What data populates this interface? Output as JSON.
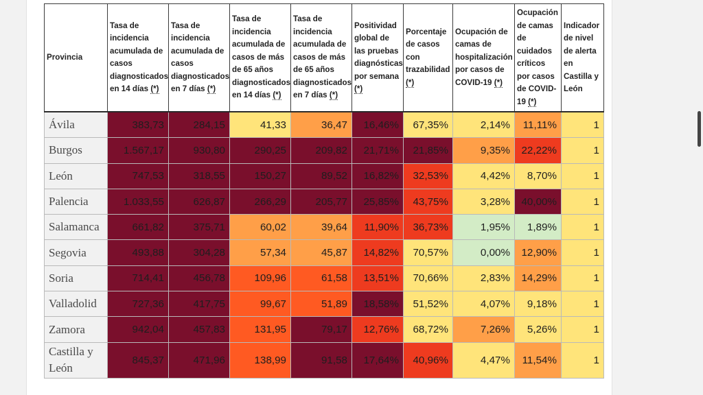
{
  "table": {
    "headers": [
      "Provincia",
      "Tasa de incidencia acumulada de casos diagnosticados en 14 días",
      "Tasa de incidencia acumulada de casos diagnosticados en 7 días",
      "Tasa de incidencia acumulada de casos de más de 65 años diagnosticados en 14 días",
      "Tasa de incidencia acumulada de casos de más de 65 años diagnosticados en 7 días",
      "Positividad global de las pruebas diagnósticas por semana",
      "Porcentaje de casos con trazabilidad",
      "Ocupación de camas de hospitalización por casos de COVID-19",
      "Ocupación de camas de cuidados críticos por casos de COVID-19",
      "Indicador de nivel de alerta en Castilla y León"
    ],
    "header_marker": "(*)",
    "rows": [
      {
        "provincia": "Ávila",
        "cells": [
          [
            "383,73",
            "dr"
          ],
          [
            "284,15",
            "dr"
          ],
          [
            "41,33",
            "yl"
          ],
          [
            "36,47",
            "or"
          ],
          [
            "16,46%",
            "dr"
          ],
          [
            "67,35%",
            "yl"
          ],
          [
            "2,14%",
            "yl"
          ],
          [
            "11,11%",
            "or"
          ],
          [
            "1",
            "yl"
          ]
        ]
      },
      {
        "provincia": "Burgos",
        "cells": [
          [
            "1.567,17",
            "dr"
          ],
          [
            "930,80",
            "dr"
          ],
          [
            "290,25",
            "dr"
          ],
          [
            "209,82",
            "dr"
          ],
          [
            "21,71%",
            "dr"
          ],
          [
            "21,85%",
            "dr"
          ],
          [
            "9,35%",
            "or"
          ],
          [
            "22,22%",
            "rd"
          ],
          [
            "1",
            "yl"
          ]
        ]
      },
      {
        "provincia": "León",
        "cells": [
          [
            "747,53",
            "dr"
          ],
          [
            "318,55",
            "dr"
          ],
          [
            "150,27",
            "dr"
          ],
          [
            "89,52",
            "dr"
          ],
          [
            "16,82%",
            "dr"
          ],
          [
            "32,53%",
            "rd"
          ],
          [
            "4,42%",
            "yl"
          ],
          [
            "8,70%",
            "yl"
          ],
          [
            "1",
            "yl"
          ]
        ]
      },
      {
        "provincia": "Palencia",
        "cells": [
          [
            "1.033,55",
            "dr"
          ],
          [
            "626,87",
            "dr"
          ],
          [
            "266,29",
            "dr"
          ],
          [
            "205,77",
            "dr"
          ],
          [
            "25,85%",
            "dr"
          ],
          [
            "43,75%",
            "rd"
          ],
          [
            "3,28%",
            "yl"
          ],
          [
            "40,00%",
            "dr"
          ],
          [
            "1",
            "yl"
          ]
        ]
      },
      {
        "provincia": "Salamanca",
        "cells": [
          [
            "661,82",
            "dr"
          ],
          [
            "375,71",
            "dr"
          ],
          [
            "60,02",
            "or"
          ],
          [
            "39,64",
            "or"
          ],
          [
            "11,90%",
            "rd"
          ],
          [
            "36,73%",
            "rd"
          ],
          [
            "1,95%",
            "lg"
          ],
          [
            "1,89%",
            "lg"
          ],
          [
            "1",
            "yl"
          ]
        ]
      },
      {
        "provincia": "Segovia",
        "cells": [
          [
            "493,88",
            "dr"
          ],
          [
            "304,28",
            "dr"
          ],
          [
            "57,34",
            "or"
          ],
          [
            "45,87",
            "or"
          ],
          [
            "14,82%",
            "rd"
          ],
          [
            "70,57%",
            "yl"
          ],
          [
            "0,00%",
            "lg"
          ],
          [
            "12,90%",
            "or"
          ],
          [
            "1",
            "yl"
          ]
        ]
      },
      {
        "provincia": "Soria",
        "cells": [
          [
            "714,41",
            "dr"
          ],
          [
            "456,78",
            "dr"
          ],
          [
            "109,96",
            "rr"
          ],
          [
            "61,58",
            "rr"
          ],
          [
            "13,51%",
            "rd"
          ],
          [
            "70,66%",
            "yl"
          ],
          [
            "2,83%",
            "yl"
          ],
          [
            "14,29%",
            "or"
          ],
          [
            "1",
            "yl"
          ]
        ]
      },
      {
        "provincia": "Valladolid",
        "cells": [
          [
            "727,36",
            "dr"
          ],
          [
            "417,75",
            "dr"
          ],
          [
            "99,67",
            "rr"
          ],
          [
            "51,89",
            "rr"
          ],
          [
            "18,58%",
            "dr"
          ],
          [
            "51,52%",
            "yl"
          ],
          [
            "4,07%",
            "yl"
          ],
          [
            "9,18%",
            "yl"
          ],
          [
            "1",
            "yl"
          ]
        ]
      },
      {
        "provincia": "Zamora",
        "cells": [
          [
            "942,04",
            "dr"
          ],
          [
            "457,83",
            "dr"
          ],
          [
            "131,95",
            "rr"
          ],
          [
            "79,17",
            "dr"
          ],
          [
            "12,76%",
            "rd"
          ],
          [
            "68,72%",
            "yl"
          ],
          [
            "7,26%",
            "or"
          ],
          [
            "5,26%",
            "yl"
          ],
          [
            "1",
            "yl"
          ]
        ]
      },
      {
        "provincia": "Castilla y León",
        "cells": [
          [
            "845,37",
            "dr"
          ],
          [
            "471,96",
            "dr"
          ],
          [
            "138,99",
            "rr"
          ],
          [
            "91,58",
            "dr"
          ],
          [
            "17,64%",
            "dr"
          ],
          [
            "40,96%",
            "rd"
          ],
          [
            "4,47%",
            "yl"
          ],
          [
            "11,54%",
            "or"
          ],
          [
            "1",
            "yl"
          ]
        ]
      }
    ]
  },
  "colors": {
    "dr": "#7a0f2c",
    "rd": "#ee3b1f",
    "rr": "#ff5a22",
    "or": "#ff9f48",
    "yl": "#ffe47a",
    "lg": "#d3ecc6"
  }
}
